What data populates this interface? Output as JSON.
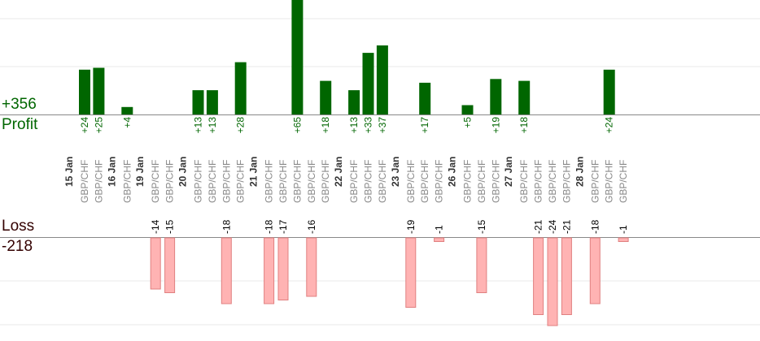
{
  "summary": {
    "profit_total": "+356",
    "profit_label": "Profit",
    "loss_label": "Loss",
    "loss_total": "-218"
  },
  "colors": {
    "profit_bar": "#006600",
    "profit_text": "#006600",
    "loss_bar": "#ffb3b3",
    "loss_border": "#e08080",
    "axis": "#888888",
    "grid": "#e8e8e8",
    "day_label": "#333333",
    "symbol_label": "#888888"
  },
  "chart_data": {
    "type": "bar",
    "profit_axis_max": 75,
    "loss_axis_min": -28,
    "grid": true,
    "days": [
      {
        "label": "15 Jan",
        "trades": [
          {
            "symbol": "GBP/CHF",
            "profit": 24,
            "label": "+24"
          },
          {
            "symbol": "GBP/CHF",
            "profit": 25,
            "label": "+25"
          }
        ]
      },
      {
        "label": "16 Jan",
        "trades": [
          {
            "symbol": "GBP/CHF",
            "profit": 4,
            "label": "+4"
          }
        ]
      },
      {
        "label": "19 Jan",
        "trades": [
          {
            "symbol": "GBP/CHF",
            "profit": -14,
            "label": "-14"
          },
          {
            "symbol": "GBP/CHF",
            "profit": -15,
            "label": "-15"
          }
        ]
      },
      {
        "label": "20 Jan",
        "trades": [
          {
            "symbol": "GBP/CHF",
            "profit": 13,
            "label": "+13"
          },
          {
            "symbol": "GBP/CHF",
            "profit": 13,
            "label": "+13"
          },
          {
            "symbol": "GBP/CHF",
            "profit": -18,
            "label": "-18"
          },
          {
            "symbol": "GBP/CHF",
            "profit": 28,
            "label": "+28"
          }
        ]
      },
      {
        "label": "21 Jan",
        "trades": [
          {
            "symbol": "GBP/CHF",
            "profit": -18,
            "label": "-18"
          },
          {
            "symbol": "GBP/CHF",
            "profit": -17,
            "label": "-17"
          },
          {
            "symbol": "GBP/CHF",
            "profit": 65,
            "label": "+65"
          },
          {
            "symbol": "GBP/CHF",
            "profit": -16,
            "label": "-16"
          },
          {
            "symbol": "GBP/CHF",
            "profit": 18,
            "label": "+18"
          }
        ]
      },
      {
        "label": "22 Jan",
        "trades": [
          {
            "symbol": "GBP/CHF",
            "profit": 13,
            "label": "+13"
          },
          {
            "symbol": "GBP/CHF",
            "profit": 33,
            "label": "+33"
          },
          {
            "symbol": "GBP/CHF",
            "profit": 37,
            "label": "+37"
          }
        ]
      },
      {
        "label": "23 Jan",
        "trades": [
          {
            "symbol": "GBP/CHF",
            "profit": -19,
            "label": "-19"
          },
          {
            "symbol": "GBP/CHF",
            "profit": 17,
            "label": "+17"
          },
          {
            "symbol": "GBP/CHF",
            "profit": -1,
            "label": "-1"
          }
        ]
      },
      {
        "label": "26 Jan",
        "trades": [
          {
            "symbol": "GBP/CHF",
            "profit": 5,
            "label": "+5"
          },
          {
            "symbol": "GBP/CHF",
            "profit": -15,
            "label": "-15"
          },
          {
            "symbol": "GBP/CHF",
            "profit": 19,
            "label": "+19"
          }
        ]
      },
      {
        "label": "27 Jan",
        "trades": [
          {
            "symbol": "GBP/CHF",
            "profit": 18,
            "label": "+18"
          },
          {
            "symbol": "GBP/CHF",
            "profit": -21,
            "label": "-21"
          },
          {
            "symbol": "GBP/CHF",
            "profit": -24,
            "label": "-24"
          },
          {
            "symbol": "GBP/CHF",
            "profit": -21,
            "label": "-21"
          }
        ]
      },
      {
        "label": "28 Jan",
        "trades": [
          {
            "symbol": "GBP/CHF",
            "profit": -18,
            "label": "-18"
          },
          {
            "symbol": "GBP/CHF",
            "profit": 24,
            "label": "+24"
          },
          {
            "symbol": "GBP/CHF",
            "profit": -1,
            "label": "-1"
          }
        ]
      }
    ]
  }
}
